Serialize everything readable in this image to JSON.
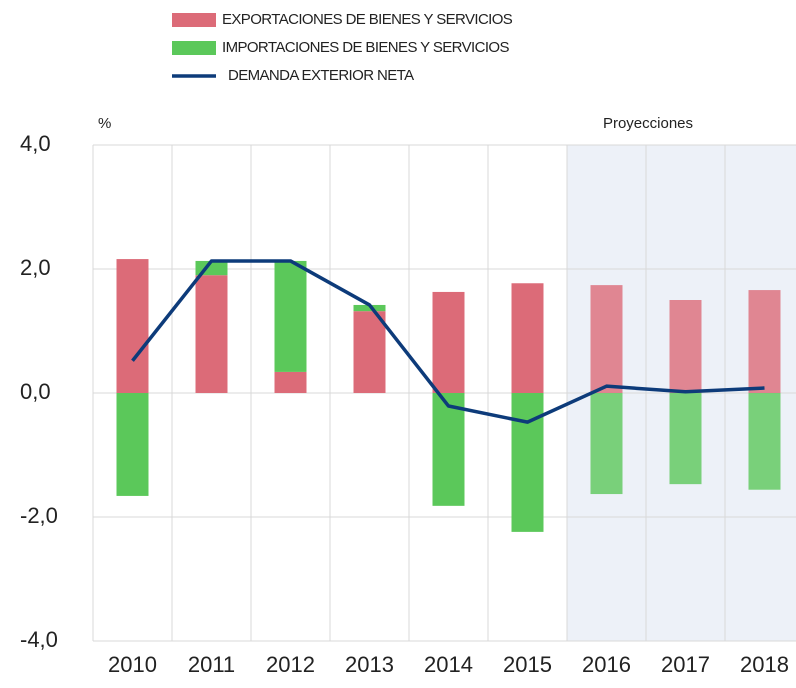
{
  "chart_data": {
    "type": "bar",
    "unit_label": "%",
    "projection": {
      "label": "Proyecciones",
      "start": "2016"
    },
    "categories": [
      "2010",
      "2011",
      "2012",
      "2013",
      "2014",
      "2015",
      "2016",
      "2017",
      "2018"
    ],
    "series": [
      {
        "name": "EXPORTACIONES DE BIENES Y SERVICIOS",
        "type": "bar",
        "color": "#dc6b78",
        "values": [
          2.16,
          1.9,
          0.34,
          1.32,
          1.63,
          1.77,
          1.74,
          1.5,
          1.66
        ]
      },
      {
        "name": "IMPORTACIONES DE BIENES Y SERVICIOS",
        "type": "bar",
        "color": "#5bc85a",
        "values": [
          -1.66,
          0.23,
          1.79,
          0.1,
          -1.82,
          -2.24,
          -1.63,
          -1.47,
          -1.56
        ]
      },
      {
        "name": "DEMANDA EXTERIOR NETA",
        "type": "line",
        "color": "#0d3b7a",
        "values": [
          0.52,
          2.13,
          2.13,
          1.42,
          -0.21,
          -0.47,
          0.11,
          0.02,
          0.08
        ]
      }
    ],
    "ylim": [
      -4,
      4
    ],
    "yticks": [
      {
        "value": -4,
        "label": "-4,0"
      },
      {
        "value": -2,
        "label": "-2,0"
      },
      {
        "value": 0,
        "label": "0,0"
      },
      {
        "value": 2,
        "label": "2,0"
      },
      {
        "value": 4,
        "label": "4,0"
      }
    ],
    "grid": true
  }
}
